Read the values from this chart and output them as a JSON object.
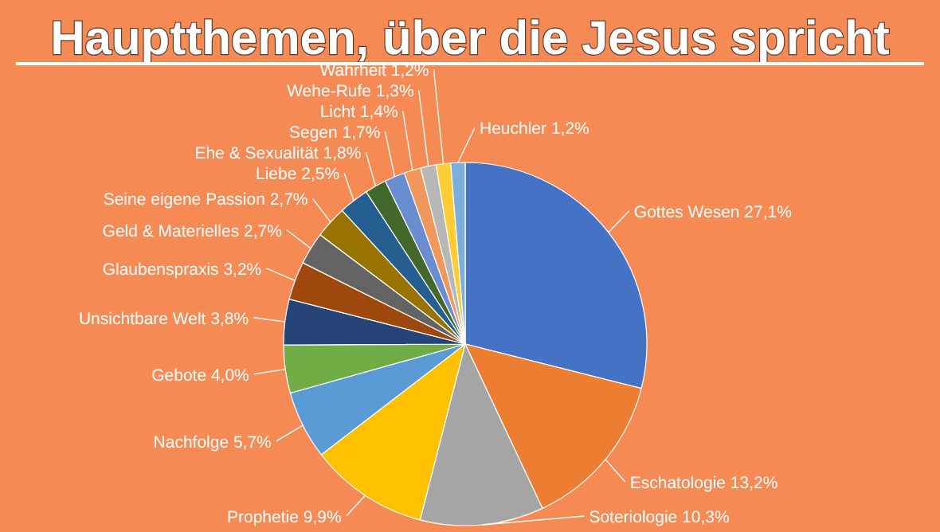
{
  "chart_data": {
    "type": "pie",
    "title": "Hauptthemen, über die Jesus spricht",
    "categories": [
      "Gottes Wesen",
      "Eschatologie",
      "Soteriologie",
      "Prophetie",
      "Nachfolge",
      "Gebote",
      "Unsichtbare Welt",
      "Glaubenspraxis",
      "Geld & Materielles",
      "Seine eigene Passion",
      "Liebe",
      "Ehe & Sexualität",
      "Segen",
      "Licht",
      "Wehe-Rufe",
      "Wahrheit",
      "Heuchler"
    ],
    "values": [
      27.1,
      13.2,
      10.3,
      9.9,
      5.7,
      4.0,
      3.8,
      3.2,
      2.7,
      2.7,
      2.5,
      1.8,
      1.7,
      1.4,
      1.3,
      1.2,
      1.2
    ],
    "value_labels": [
      "27,1%",
      "13,2%",
      "10,3%",
      "9,9%",
      "5,7%",
      "4,0%",
      "3,8%",
      "3,2%",
      "2,7%",
      "2,7%",
      "2,5%",
      "1,8%",
      "1,7%",
      "1,4%",
      "1,3%",
      "1,2%",
      "1,2%"
    ],
    "colors": [
      "#4472c4",
      "#ed7d31",
      "#a5a5a5",
      "#ffc000",
      "#5b9bd5",
      "#70ad47",
      "#264478",
      "#9e480e",
      "#636363",
      "#997300",
      "#255e91",
      "#43682b",
      "#698ed0",
      "#f1975a",
      "#b7b7b7",
      "#ffcd33",
      "#7cafdd"
    ]
  }
}
